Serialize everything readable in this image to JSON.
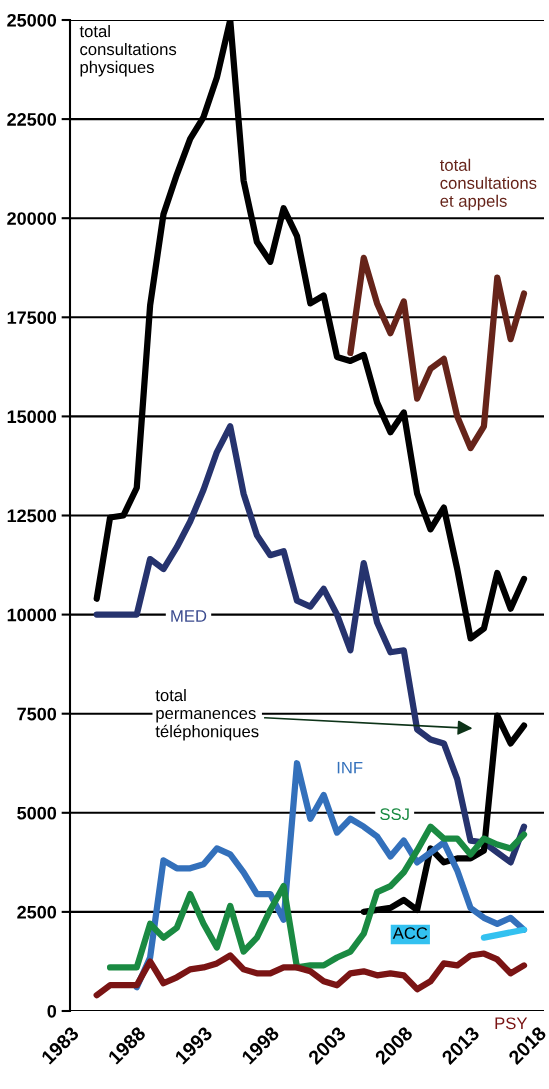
{
  "chart_data": {
    "type": "line",
    "x": [
      1985,
      1986,
      1987,
      1988,
      1989,
      1990,
      1991,
      1992,
      1993,
      1994,
      1995,
      1996,
      1997,
      1998,
      1999,
      2000,
      2001,
      2002,
      2003,
      2004,
      2005,
      2006,
      2007,
      2008,
      2009,
      2010,
      2011,
      2012,
      2013,
      2014,
      2015,
      2016,
      2017
    ],
    "series": [
      {
        "name": "total consultations physiques",
        "color": "#000000",
        "values": [
          10400,
          12450,
          12500,
          13200,
          17800,
          20100,
          21100,
          22000,
          22550,
          23550,
          25000,
          20950,
          19400,
          18900,
          20250,
          19550,
          17850,
          18050,
          16500,
          16400,
          16550,
          15350,
          14600,
          15100,
          13050,
          12150,
          12700,
          11150,
          9400,
          9650,
          11050,
          10150,
          10900
        ]
      },
      {
        "name": "total consultations et appels",
        "color": "#66241a",
        "x": [
          2004,
          2005,
          2006,
          2007,
          2008,
          2009,
          2010,
          2011,
          2012,
          2013,
          2014,
          2015,
          2016,
          2017
        ],
        "values": [
          16600,
          19000,
          17850,
          17100,
          17900,
          15450,
          16200,
          16450,
          15000,
          14200,
          14750,
          18500,
          16950,
          18100
        ]
      },
      {
        "name": "MED",
        "color": "#26336e",
        "values": [
          10000,
          10000,
          10000,
          10000,
          11400,
          11150,
          11700,
          12350,
          13150,
          14100,
          14750,
          13050,
          12000,
          11500,
          11600,
          10350,
          10200,
          10650,
          10000,
          9100,
          11300,
          9800,
          9050,
          9100,
          7100,
          6850,
          6750,
          5850,
          4300,
          4250,
          4000,
          3750,
          4650
        ]
      },
      {
        "name": "total permanences téléphoniques",
        "color": "#000000",
        "x": [
          2005,
          2006,
          2007,
          2008,
          2009,
          2010,
          2011,
          2012,
          2013,
          2014,
          2015,
          2016,
          2017
        ],
        "values": [
          2500,
          2550,
          2600,
          2800,
          2550,
          4100,
          3750,
          3850,
          3850,
          4050,
          7450,
          6750,
          7200
        ]
      },
      {
        "name": "INF",
        "color": "#3370bb",
        "x": [
          1988,
          1989,
          1990,
          1991,
          1992,
          1993,
          1994,
          1995,
          1996,
          1997,
          1998,
          1999,
          2000,
          2001,
          2002,
          2003,
          2004,
          2005,
          2006,
          2007,
          2008,
          2009,
          2010,
          2011,
          2012,
          2013,
          2014,
          2015,
          2016,
          2017
        ],
        "values": [
          600,
          1350,
          3800,
          3600,
          3600,
          3700,
          4100,
          3950,
          3500,
          2950,
          2950,
          2300,
          6250,
          4850,
          5450,
          4500,
          4850,
          4650,
          4400,
          3900,
          4300,
          3750,
          4000,
          4250,
          3550,
          2600,
          2350,
          2200,
          2350,
          2050
        ]
      },
      {
        "name": "SSJ",
        "color": "#1a8a42",
        "x": [
          1986,
          1987,
          1988,
          1989,
          1990,
          1991,
          1992,
          1993,
          1994,
          1995,
          1996,
          1997,
          1998,
          1999,
          2000,
          2001,
          2002,
          2003,
          2004,
          2005,
          2006,
          2007,
          2008,
          2009,
          2010,
          2011,
          2012,
          2013,
          2014,
          2015,
          2016,
          2017
        ],
        "values": [
          1100,
          1100,
          1100,
          2200,
          1850,
          2100,
          2950,
          2200,
          1600,
          2650,
          1500,
          1850,
          2550,
          3150,
          1100,
          1150,
          1150,
          1350,
          1500,
          1950,
          3000,
          3150,
          3500,
          4050,
          4650,
          4350,
          4350,
          3950,
          4350,
          4200,
          4100,
          4450
        ]
      },
      {
        "name": "PSY",
        "color": "#7a1414",
        "values": [
          400,
          650,
          650,
          650,
          1250,
          700,
          850,
          1050,
          1100,
          1200,
          1400,
          1050,
          950,
          950,
          1100,
          1100,
          1000,
          750,
          650,
          950,
          1000,
          900,
          950,
          900,
          550,
          750,
          1200,
          1150,
          1400,
          1450,
          1300,
          950,
          1150
        ]
      },
      {
        "name": "ACC",
        "color": "#33c1f0",
        "x": [
          2014,
          2017
        ],
        "values": [
          1850,
          2050
        ]
      }
    ],
    "xlim": [
      1983,
      2018.5
    ],
    "xticks": [
      1983,
      1988,
      1993,
      1998,
      2003,
      2008,
      2013,
      2018
    ],
    "ylim": [
      0,
      25000
    ],
    "yticks": [
      0,
      2500,
      5000,
      7500,
      10000,
      12500,
      15000,
      17500,
      20000,
      22500,
      25000
    ],
    "grid": "y",
    "legend": false,
    "marker": "none",
    "line_style": "solid"
  }
}
